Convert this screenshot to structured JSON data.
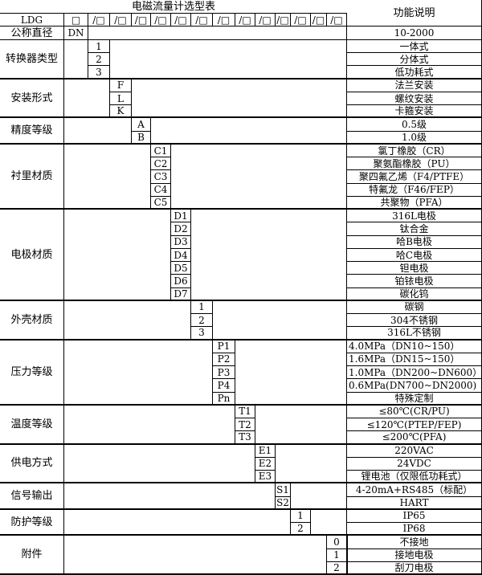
{
  "title": "电磁流量计选型表",
  "function_header": "功能说明",
  "model_prefix": "LDG",
  "first_slot": "□",
  "slot": "/□",
  "slot_count": 13,
  "nominal_diameter": {
    "label": "公称直径",
    "code": "DN",
    "description": "10-2000"
  },
  "groups": [
    {
      "label": "转换器类型",
      "col": 0,
      "items": [
        {
          "code": "1",
          "description": "一体式"
        },
        {
          "code": "2",
          "description": "分体式"
        },
        {
          "code": "3",
          "description": "低功耗式"
        }
      ]
    },
    {
      "label": "安装形式",
      "col": 1,
      "items": [
        {
          "code": "F",
          "description": "法兰安装"
        },
        {
          "code": "L",
          "description": "螺纹安装"
        },
        {
          "code": "K",
          "description": "卡箍安装"
        }
      ]
    },
    {
      "label": "精度等级",
      "col": 2,
      "items": [
        {
          "code": "A",
          "description": "0.5级"
        },
        {
          "code": "B",
          "description": "1.0级"
        }
      ]
    },
    {
      "label": "衬里材质",
      "col": 3,
      "items": [
        {
          "code": "C1",
          "description": "氯丁橡胶（CR）"
        },
        {
          "code": "C2",
          "description": "聚氨酯橡胶（PU）"
        },
        {
          "code": "C3",
          "description": "聚四氟乙烯（F4/PTFE）"
        },
        {
          "code": "C4",
          "description": "特氟龙（F46/FEP）"
        },
        {
          "code": "C5",
          "description": "共聚物（PFA）"
        }
      ]
    },
    {
      "label": "电极材质",
      "col": 4,
      "items": [
        {
          "code": "D1",
          "description": "316L电极"
        },
        {
          "code": "D2",
          "description": "钛合金"
        },
        {
          "code": "D3",
          "description": "哈B电极"
        },
        {
          "code": "D4",
          "description": "哈C电极"
        },
        {
          "code": "D5",
          "description": "钽电极"
        },
        {
          "code": "D6",
          "description": "铂铱电极"
        },
        {
          "code": "D7",
          "description": "碳化钨"
        }
      ]
    },
    {
      "label": "外壳材质",
      "col": 5,
      "items": [
        {
          "code": "1",
          "description": "碳钢"
        },
        {
          "code": "2",
          "description": "304不锈钢"
        },
        {
          "code": "3",
          "description": "316L不锈钢"
        }
      ]
    },
    {
      "label": "压力等级",
      "col": 6,
      "items": [
        {
          "code": "P1",
          "description": "4.0MPa（DN10~150）",
          "left": true
        },
        {
          "code": "P2",
          "description": "1.6MPa（DN15~150）",
          "left": true
        },
        {
          "code": "P3",
          "description": "1.0MPa（DN200~DN600）",
          "left": true
        },
        {
          "code": "P4",
          "description": "0.6MPa(DN700~DN2000)",
          "left": true
        },
        {
          "code": "Pn",
          "description": "特殊定制"
        }
      ]
    },
    {
      "label": "温度等级",
      "col": 7,
      "items": [
        {
          "code": "T1",
          "description": "≤80℃(CR/PU)"
        },
        {
          "code": "T2",
          "description": "≤120℃(PTEP/FEP)"
        },
        {
          "code": "T3",
          "description": "≤200℃(PFA)"
        }
      ]
    },
    {
      "label": "供电方式",
      "col": 8,
      "items": [
        {
          "code": "E1",
          "description": "220VAC"
        },
        {
          "code": "E2",
          "description": "24VDC"
        },
        {
          "code": "E3",
          "description": "锂电池（仅限低功耗式）"
        }
      ]
    },
    {
      "label": "信号输出",
      "col": 9,
      "items": [
        {
          "code": "S1",
          "description": "4-20mA+RS485（标配）"
        },
        {
          "code": "S2",
          "description": "HART"
        }
      ]
    },
    {
      "label": "防护等级",
      "col": 10,
      "items": [
        {
          "code": "1",
          "description": "IP65"
        },
        {
          "code": "2",
          "description": "IP68"
        }
      ]
    },
    {
      "label": "附件",
      "col": 12,
      "items": [
        {
          "code": "0",
          "description": "不接地"
        },
        {
          "code": "1",
          "description": "接地电极"
        },
        {
          "code": "2",
          "description": "刮刀电极"
        }
      ]
    }
  ]
}
